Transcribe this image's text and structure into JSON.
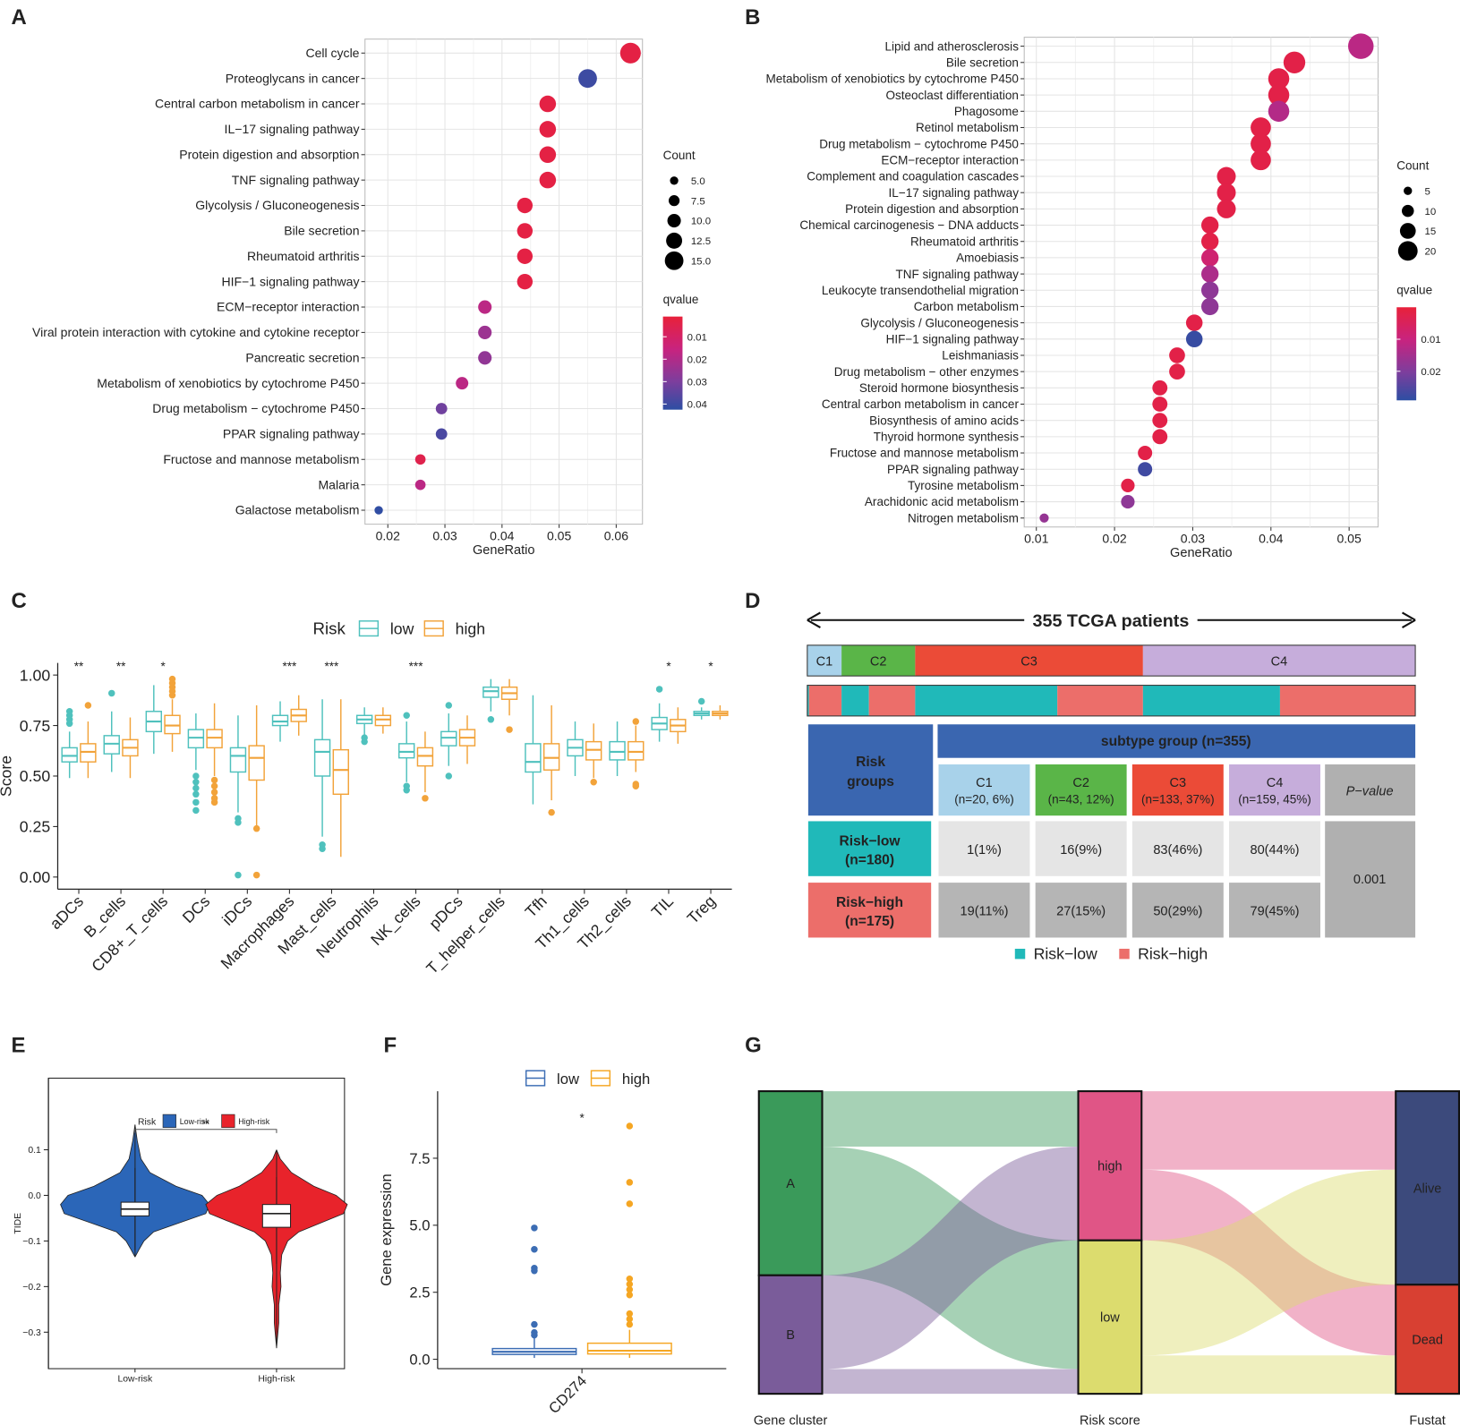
{
  "panel_labels": [
    "A",
    "B",
    "C",
    "D",
    "E",
    "F",
    "G"
  ],
  "chart_data": [
    {
      "type": "dot",
      "x_label": "GeneRatio",
      "categories": [
        "Cell cycle",
        "Proteoglycans in cancer",
        "Central carbon metabolism in cancer",
        "IL−17 signaling pathway",
        "Protein digestion and absorption",
        "TNF signaling pathway",
        "Glycolysis / Gluconeogenesis",
        "Bile secretion",
        "Rheumatoid arthritis",
        "HIF−1 signaling pathway",
        "ECM−receptor interaction",
        "Viral protein interaction with cytokine and cytokine receptor",
        "Pancreatic secretion",
        "Metabolism of xenobiotics by cytochrome P450",
        "Drug metabolism − cytochrome P450",
        "PPAR signaling pathway",
        "Fructose and mannose metabolism",
        "Malaria",
        "Galactose metabolism"
      ],
      "values": [
        0.0625,
        0.055,
        0.048,
        0.048,
        0.048,
        0.048,
        0.044,
        0.044,
        0.044,
        0.044,
        0.037,
        0.037,
        0.037,
        0.033,
        0.0294,
        0.0294,
        0.0257,
        0.0257,
        0.0184
      ],
      "sizes": [
        17,
        15,
        13,
        13,
        13,
        13,
        12,
        12,
        12,
        12,
        10,
        10,
        10,
        9,
        8,
        8,
        7,
        7,
        5
      ],
      "qvalues": [
        0.003,
        0.04,
        0.003,
        0.003,
        0.003,
        0.003,
        0.003,
        0.003,
        0.003,
        0.003,
        0.018,
        0.024,
        0.026,
        0.018,
        0.032,
        0.038,
        0.005,
        0.018,
        0.042
      ],
      "xlim": [
        0.016,
        0.0646
      ],
      "xticks": [
        0.02,
        0.03,
        0.04,
        0.05,
        0.06
      ],
      "grid": true,
      "size_legend": {
        "title": "Count",
        "ticks": [
          {
            "value": 5,
            "label": "5.0"
          },
          7.5,
          {
            "value": 10,
            "label": "10.0"
          },
          12.5,
          {
            "value": 15,
            "label": "15.0"
          }
        ]
      },
      "color_legend": {
        "title": "qvalue",
        "lim": [
          0.001,
          0.0425
        ],
        "ticks": [
          0.01,
          0.02,
          0.03,
          0.04
        ]
      }
    },
    {
      "type": "dot",
      "x_label": "GeneRatio",
      "categories": [
        "Lipid and atherosclerosis",
        "Bile secretion",
        "Metabolism of xenobiotics by cytochrome P450",
        "Osteoclast differentiation",
        "Phagosome",
        "Retinol metabolism",
        "Drug metabolism − cytochrome P450",
        "ECM−receptor interaction",
        "Complement and coagulation cascades",
        "IL−17 signaling pathway",
        "Protein digestion and absorption",
        "Chemical carcinogenesis − DNA adducts",
        "Rheumatoid arthritis",
        "Amoebiasis",
        "TNF signaling pathway",
        "Leukocyte transendothelial migration",
        "Carbon metabolism",
        "Glycolysis / Gluconeogenesis",
        "HIF−1 signaling pathway",
        "Leishmaniasis",
        "Drug metabolism − other enzymes",
        "Steroid hormone biosynthesis",
        "Central carbon metabolism in cancer",
        "Biosynthesis of amino acids",
        "Thyroid hormone synthesis",
        "Fructose and mannose metabolism",
        "PPAR signaling pathway",
        "Tyrosine metabolism",
        "Arachidonic acid metabolism",
        "Nitrogen metabolism"
      ],
      "values": [
        0.0515,
        0.043,
        0.041,
        0.041,
        0.041,
        0.0387,
        0.0387,
        0.0387,
        0.0343,
        0.0343,
        0.0343,
        0.0322,
        0.0322,
        0.0322,
        0.0322,
        0.0322,
        0.0322,
        0.0302,
        0.0302,
        0.028,
        0.028,
        0.0258,
        0.0258,
        0.0258,
        0.0258,
        0.0239,
        0.0239,
        0.0217,
        0.0217,
        0.011
      ],
      "sizes": [
        28,
        23,
        22,
        22,
        22,
        21,
        21,
        21,
        19,
        19,
        19,
        17,
        17,
        17,
        17,
        17,
        17,
        16,
        16,
        15,
        15,
        14,
        14,
        14,
        14,
        13,
        13,
        12,
        12,
        6
      ],
      "qvalues": [
        0.012,
        0.002,
        0.002,
        0.002,
        0.013,
        0.002,
        0.002,
        0.002,
        0.002,
        0.002,
        0.002,
        0.002,
        0.002,
        0.008,
        0.014,
        0.018,
        0.018,
        0.002,
        0.028,
        0.002,
        0.002,
        0.002,
        0.002,
        0.002,
        0.002,
        0.002,
        0.027,
        0.002,
        0.018,
        0.017
      ],
      "xlim": [
        0.00845,
        0.0537
      ],
      "xticks": [
        0.01,
        0.02,
        0.03,
        0.04,
        0.05
      ],
      "grid": true,
      "size_legend": {
        "title": "Count",
        "ticks": [
          5,
          10,
          15,
          20
        ]
      },
      "color_legend": {
        "title": "qvalue",
        "lim": [
          0.0,
          0.0291
        ],
        "ticks": [
          0.01,
          0.02
        ]
      }
    },
    {
      "type": "box",
      "y_label": "Score",
      "legend_title": "Risk",
      "categories": [
        "aDCs",
        "B_cells",
        "CD8+_T_cells",
        "DCs",
        "iDCs",
        "Macrophages",
        "Mast_cells",
        "Neutrophils",
        "NK_cells",
        "pDCs",
        "T_helper_cells",
        "Tfh",
        "Th1_cells",
        "Th2_cells",
        "TIL",
        "Treg"
      ],
      "significance": [
        "**",
        "**",
        "*",
        null,
        null,
        "***",
        "***",
        null,
        "***",
        null,
        null,
        null,
        null,
        null,
        "*",
        "*"
      ],
      "ylim": [
        -0.06,
        1.06
      ],
      "yticks": [
        {
          "value": 0,
          "label": "0.00"
        },
        0.25,
        {
          "value": 0.5,
          "label": "0.50"
        },
        0.75,
        {
          "value": 1,
          "label": "1.00"
        }
      ],
      "series": [
        {
          "name": "low",
          "color": "#4fc1bd",
          "boxes": [
            [
              0.49,
              0.57,
              0.6,
              0.64,
              0.72
            ],
            [
              0.52,
              0.61,
              0.66,
              0.7,
              0.82
            ],
            [
              0.61,
              0.72,
              0.77,
              0.82,
              0.95
            ],
            [
              0.53,
              0.64,
              0.69,
              0.73,
              0.81
            ],
            [
              0.32,
              0.52,
              0.6,
              0.64,
              0.8
            ],
            [
              0.67,
              0.75,
              0.77,
              0.8,
              0.87
            ],
            [
              0.2,
              0.5,
              0.62,
              0.68,
              0.88
            ],
            [
              0.7,
              0.76,
              0.78,
              0.8,
              0.84
            ],
            [
              0.47,
              0.59,
              0.62,
              0.66,
              0.77
            ],
            [
              0.55,
              0.65,
              0.69,
              0.72,
              0.81
            ],
            [
              0.82,
              0.89,
              0.92,
              0.94,
              0.98
            ],
            [
              0.36,
              0.52,
              0.57,
              0.66,
              0.9
            ],
            [
              0.5,
              0.6,
              0.64,
              0.68,
              0.77
            ],
            [
              0.5,
              0.58,
              0.62,
              0.67,
              0.77
            ],
            [
              0.67,
              0.73,
              0.76,
              0.79,
              0.86
            ],
            [
              0.78,
              0.8,
              0.81,
              0.82,
              0.84
            ]
          ],
          "outliers": [
            [
              0.76,
              0.78,
              0.8,
              0.82
            ],
            [
              0.91
            ],
            [],
            [
              0.5,
              0.47,
              0.44,
              0.41,
              0.37,
              0.33
            ],
            [
              0.29,
              0.27,
              0.01
            ],
            [],
            [
              0.16,
              0.14
            ],
            [
              0.69,
              0.67
            ],
            [
              0.8,
              0.45,
              0.43
            ],
            [
              0.85,
              0.5
            ],
            [
              0.78
            ],
            [],
            [],
            [],
            [
              0.93
            ],
            [
              0.87
            ]
          ]
        },
        {
          "name": "high",
          "color": "#f2a33a",
          "boxes": [
            [
              0.49,
              0.57,
              0.62,
              0.66,
              0.77
            ],
            [
              0.49,
              0.6,
              0.64,
              0.68,
              0.79
            ],
            [
              0.62,
              0.71,
              0.75,
              0.8,
              0.88
            ],
            [
              0.5,
              0.64,
              0.69,
              0.73,
              0.86
            ],
            [
              0.25,
              0.48,
              0.59,
              0.65,
              0.85
            ],
            [
              0.7,
              0.77,
              0.8,
              0.83,
              0.9
            ],
            [
              0.1,
              0.41,
              0.53,
              0.63,
              0.88
            ],
            [
              0.71,
              0.75,
              0.78,
              0.8,
              0.84
            ],
            [
              0.42,
              0.55,
              0.6,
              0.64,
              0.72
            ],
            [
              0.56,
              0.65,
              0.69,
              0.73,
              0.8
            ],
            [
              0.8,
              0.88,
              0.91,
              0.94,
              0.98
            ],
            [
              0.38,
              0.53,
              0.59,
              0.66,
              0.85
            ],
            [
              0.49,
              0.58,
              0.63,
              0.67,
              0.76
            ],
            [
              0.52,
              0.58,
              0.62,
              0.67,
              0.75
            ],
            [
              0.66,
              0.72,
              0.75,
              0.78,
              0.84
            ],
            [
              0.78,
              0.8,
              0.81,
              0.82,
              0.85
            ]
          ],
          "outliers": [
            [
              0.85
            ],
            [],
            [
              0.9,
              0.92,
              0.94,
              0.96,
              0.98
            ],
            [
              0.48,
              0.45,
              0.42,
              0.39,
              0.37
            ],
            [
              0.24,
              0.01
            ],
            [],
            [],
            [],
            [
              0.39
            ],
            [],
            [
              0.73
            ],
            [
              0.32
            ],
            [
              0.47
            ],
            [
              0.77,
              0.46,
              0.45
            ],
            [],
            []
          ]
        }
      ]
    },
    {
      "type": "violin",
      "y_label": "TIDE",
      "legend_title": "Risk",
      "significance": "**",
      "categories": [
        "Low-risk",
        "High-risk"
      ],
      "ylim": [
        -0.38,
        0.257
      ],
      "yticks": [
        0.1,
        {
          "value": 0,
          "label": "0.0"
        },
        {
          "value": -0.1,
          "label": "−0.1"
        },
        {
          "value": -0.2,
          "label": "−0.2"
        },
        {
          "value": -0.3,
          "label": "−0.3"
        }
      ],
      "series": [
        {
          "name": "Low-risk",
          "color": "#2b66b8",
          "box": [
            -0.12,
            -0.045,
            -0.03,
            -0.015,
            0.06
          ],
          "violin": {
            "y": [
              0.155,
              0.12,
              0.08,
              0.05,
              0.02,
              0.0,
              -0.02,
              -0.04,
              -0.06,
              -0.08,
              -0.1,
              -0.12,
              -0.135
            ],
            "density": [
              0,
              0.03,
              0.08,
              0.2,
              0.55,
              0.9,
              1.0,
              0.95,
              0.6,
              0.25,
              0.12,
              0.05,
              0
            ]
          }
        },
        {
          "name": "High-risk",
          "color": "#e8232b",
          "box": [
            -0.15,
            -0.07,
            -0.04,
            -0.02,
            0.04
          ],
          "violin": {
            "y": [
              0.1,
              0.08,
              0.05,
              0.02,
              0.0,
              -0.02,
              -0.04,
              -0.06,
              -0.08,
              -0.1,
              -0.13,
              -0.17,
              -0.2,
              -0.24,
              -0.28,
              -0.335
            ],
            "density": [
              0,
              0.05,
              0.2,
              0.5,
              0.8,
              0.95,
              0.9,
              0.6,
              0.3,
              0.15,
              0.07,
              0.05,
              0.06,
              0.03,
              0.03,
              0
            ]
          }
        }
      ]
    },
    {
      "type": "box",
      "y_label": "Gene expression",
      "categories": [
        "CD274"
      ],
      "significance": [
        "*"
      ],
      "ylim": [
        -0.35,
        10.0
      ],
      "yticks": [
        {
          "value": 0,
          "label": "0.0"
        },
        2.5,
        {
          "value": 5,
          "label": "5.0"
        },
        7.5
      ],
      "series": [
        {
          "name": "low",
          "color": "#3c6db4",
          "boxes": [
            [
              0.05,
              0.18,
              0.28,
              0.4,
              0.8
            ]
          ],
          "outliers": [
            [
              0.9,
              1.0,
              1.3,
              3.3,
              3.4,
              4.1,
              4.9
            ]
          ]
        },
        {
          "name": "high",
          "color": "#f5a623",
          "boxes": [
            [
              0.05,
              0.2,
              0.32,
              0.6,
              1.1
            ]
          ],
          "outliers": [
            [
              1.3,
              1.5,
              1.7,
              2.4,
              2.6,
              2.8,
              3.0,
              5.8,
              6.6,
              8.7
            ]
          ]
        }
      ]
    },
    {
      "type": "sankey",
      "axes": [
        {
          "name": "Gene cluster",
          "nodes": [
            {
              "name": "A",
              "color": "#3a9a5a"
            },
            {
              "name": "B",
              "color": "#7a5c9a"
            }
          ]
        },
        {
          "name": "Risk score",
          "nodes": [
            {
              "name": "high",
              "color": "#e05586"
            },
            {
              "name": "low",
              "color": "#dcdc6e"
            }
          ]
        },
        {
          "name": "Fustat",
          "nodes": [
            {
              "name": "Alive",
              "color": "#3c4a7c"
            },
            {
              "name": "Dead",
              "color": "#d84032"
            }
          ]
        }
      ],
      "links": [
        {
          "source": "A",
          "target": "high",
          "value": 65
        },
        {
          "source": "A",
          "target": "low",
          "value": 151
        },
        {
          "source": "B",
          "target": "high",
          "value": 110
        },
        {
          "source": "B",
          "target": "low",
          "value": 29
        },
        {
          "source": "high",
          "target": "Alive",
          "value": 92
        },
        {
          "source": "high",
          "target": "Dead",
          "value": 83
        },
        {
          "source": "low",
          "target": "Alive",
          "value": 135
        },
        {
          "source": "low",
          "target": "Dead",
          "value": 45
        }
      ]
    }
  ],
  "panel_d": {
    "title": "355 TCGA patients",
    "subtypes": [
      {
        "name": "C1",
        "n": 20,
        "label": "(n=20, 6%)",
        "color": "#a8d2ea"
      },
      {
        "name": "C2",
        "n": 43,
        "label": "(n=43, 12%)",
        "color": "#5ab548"
      },
      {
        "name": "C3",
        "n": 133,
        "label": "(n=133, 37%)",
        "color": "#eb4b37"
      },
      {
        "name": "C4",
        "n": 159,
        "label": "(n=159, 45%)",
        "color": "#c6addb"
      }
    ],
    "table": {
      "corner": [
        "Risk",
        "groups"
      ],
      "group_header": "subtype group (n=355)",
      "p_header": "P−value",
      "p_value": "0.001",
      "rows": [
        {
          "name": "Risk−low",
          "label": "(n=180)",
          "color": "#20b9b9",
          "counts": [
            1,
            16,
            83,
            80
          ],
          "cells": [
            "1(1%)",
            "16(9%)",
            "83(46%)",
            "80(44%)"
          ]
        },
        {
          "name": "Risk−high",
          "label": "(n=175)",
          "color": "#ec6e6a",
          "counts": [
            19,
            27,
            50,
            79
          ],
          "cells": [
            "19(11%)",
            "27(15%)",
            "50(29%)",
            "79(45%)"
          ]
        }
      ]
    },
    "legend": [
      "Risk−low",
      "Risk−high"
    ]
  }
}
